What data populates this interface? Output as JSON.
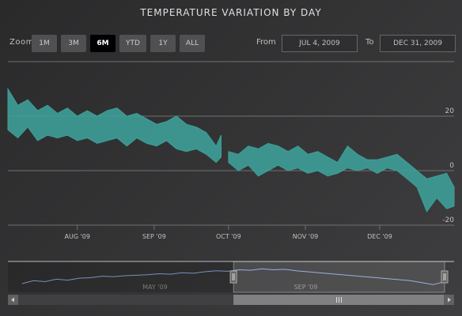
{
  "title": "TEMPERATURE VARIATION BY DAY",
  "range_selector": {
    "zoom_label": "Zoom",
    "buttons": [
      {
        "label": "1m",
        "selected": false
      },
      {
        "label": "3m",
        "selected": false
      },
      {
        "label": "6m",
        "selected": true
      },
      {
        "label": "YTD",
        "selected": false
      },
      {
        "label": "1y",
        "selected": false
      },
      {
        "label": "All",
        "selected": false
      }
    ],
    "from_label": "From",
    "from_value": "Jul 4, 2009",
    "to_label": "To",
    "to_value": "Dec 31, 2009"
  },
  "colors": {
    "series": "#3e9e98",
    "navigator_line": "#90a8d8",
    "gridline": "#707073"
  },
  "chart_data": {
    "type": "arearange",
    "title": "TEMPERATURE VARIATION BY DAY",
    "xlabel": "",
    "ylabel": "",
    "x_range": [
      "2009-07-04",
      "2009-12-31"
    ],
    "ylim": [
      -20,
      40
    ],
    "y_ticks": [
      {
        "value": 20,
        "label": "20"
      },
      {
        "value": 0,
        "label": "0"
      },
      {
        "value": -20,
        "label": "-20"
      }
    ],
    "x_ticks": [
      {
        "date": "2009-08-01",
        "label": "Aug '09"
      },
      {
        "date": "2009-09-01",
        "label": "Sep '09"
      },
      {
        "date": "2009-10-01",
        "label": "Oct '09"
      },
      {
        "date": "2009-11-01",
        "label": "Nov '09"
      },
      {
        "date": "2009-12-01",
        "label": "Dec '09"
      }
    ],
    "grid": true,
    "series": [
      {
        "data": [
          [
            "2009-07-04",
            15,
            30
          ],
          [
            "2009-07-08",
            12,
            24
          ],
          [
            "2009-07-12",
            16,
            26
          ],
          [
            "2009-07-16",
            11,
            22
          ],
          [
            "2009-07-20",
            13,
            24
          ],
          [
            "2009-07-24",
            12,
            21
          ],
          [
            "2009-07-28",
            13,
            23
          ],
          [
            "2009-08-01",
            11,
            20
          ],
          [
            "2009-08-05",
            12,
            22
          ],
          [
            "2009-08-09",
            10,
            20
          ],
          [
            "2009-08-13",
            11,
            22
          ],
          [
            "2009-08-17",
            12,
            23
          ],
          [
            "2009-08-21",
            9,
            20
          ],
          [
            "2009-08-25",
            12,
            21
          ],
          [
            "2009-08-29",
            10,
            19
          ],
          [
            "2009-09-02",
            9,
            17
          ],
          [
            "2009-09-06",
            11,
            18
          ],
          [
            "2009-09-10",
            8,
            20
          ],
          [
            "2009-09-14",
            7,
            17
          ],
          [
            "2009-09-18",
            8,
            16
          ],
          [
            "2009-09-22",
            6,
            14
          ],
          [
            "2009-09-26",
            3,
            9
          ],
          [
            "2009-09-28",
            5,
            13
          ],
          [
            "2009-10-01",
            3,
            7
          ],
          [
            "2009-10-05",
            0,
            6
          ],
          [
            "2009-10-09",
            2,
            9
          ],
          [
            "2009-10-13",
            -2,
            8
          ],
          [
            "2009-10-17",
            0,
            10
          ],
          [
            "2009-10-21",
            2,
            9
          ],
          [
            "2009-10-25",
            0,
            7
          ],
          [
            "2009-10-29",
            1,
            9
          ],
          [
            "2009-11-02",
            -1,
            6
          ],
          [
            "2009-11-06",
            0,
            7
          ],
          [
            "2009-11-10",
            -2,
            5
          ],
          [
            "2009-11-14",
            -1,
            3
          ],
          [
            "2009-11-18",
            1,
            9
          ],
          [
            "2009-11-22",
            0,
            6
          ],
          [
            "2009-11-26",
            1,
            4
          ],
          [
            "2009-11-30",
            -1,
            4
          ],
          [
            "2009-12-04",
            1,
            5
          ],
          [
            "2009-12-08",
            0,
            6
          ],
          [
            "2009-12-12",
            -3,
            3
          ],
          [
            "2009-12-16",
            -6,
            0
          ],
          [
            "2009-12-20",
            -15,
            -3
          ],
          [
            "2009-12-24",
            -10,
            -2
          ],
          [
            "2009-12-28",
            -14,
            -1
          ],
          [
            "2009-12-31",
            -13,
            -6
          ]
        ]
      }
    ]
  },
  "navigator": {
    "x_range": [
      "2009-01-01",
      "2009-12-31"
    ],
    "labels": [
      {
        "date": "2009-05-01",
        "label": "May '09"
      },
      {
        "date": "2009-09-01",
        "label": "Sep '09"
      }
    ],
    "series_values": [
      -12,
      -6,
      -8,
      -3,
      -5,
      -1,
      0,
      3,
      2,
      4,
      5,
      6,
      8,
      7,
      10,
      9,
      12,
      14,
      13,
      16,
      15,
      18,
      16,
      17,
      14,
      12,
      10,
      8,
      6,
      4,
      2,
      0,
      -2,
      -4,
      -6,
      -10,
      -14,
      -8
    ]
  }
}
